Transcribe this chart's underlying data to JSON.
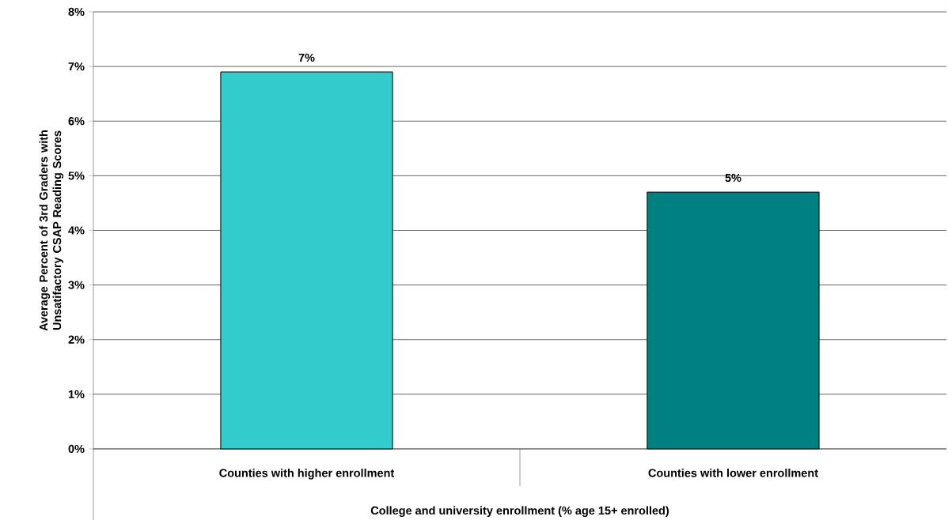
{
  "chart_data": {
    "type": "bar",
    "categories": [
      "Counties with higher enrollment",
      "Counties with lower enrollment"
    ],
    "values": [
      6.9,
      4.7
    ],
    "colors": [
      "#33cccc",
      "#008080"
    ],
    "value_labels": [
      "7%",
      "5%"
    ],
    "xlabel": "College and university enrollment (% age 15+ enrolled)",
    "ylabel": "Average Percent of 3rd Graders with Unsatifactory CSAP Reading Scores",
    "ylim": [
      0,
      8
    ],
    "yticks": [
      {
        "value": 0,
        "label": "0%"
      },
      {
        "value": 1,
        "label": "1%"
      },
      {
        "value": 2,
        "label": "2%"
      },
      {
        "value": 3,
        "label": "3%"
      },
      {
        "value": 4,
        "label": "4%"
      },
      {
        "value": 5,
        "label": "5%"
      },
      {
        "value": 6,
        "label": "6%"
      },
      {
        "value": 7,
        "label": "7%"
      },
      {
        "value": 8,
        "label": "8%"
      }
    ],
    "grid": "y"
  }
}
